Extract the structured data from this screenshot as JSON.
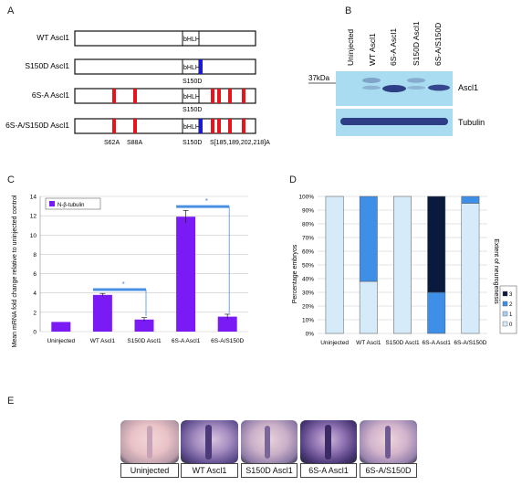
{
  "panels": {
    "a": "A",
    "b": "B",
    "c": "C",
    "d": "D",
    "e": "E"
  },
  "panel_a": {
    "constructs": [
      {
        "label": "WT Ascl1",
        "domain": "bHLH",
        "phospho_bars": [],
        "s150d": false
      },
      {
        "label": "S150D Ascl1",
        "domain": "bHLH",
        "phospho_bars": [],
        "s150d": true,
        "s150d_label": "S150D"
      },
      {
        "label": "6S-A Ascl1",
        "domain": "bHLH",
        "phospho_bars": [
          1,
          2,
          3,
          4,
          5,
          6
        ],
        "s150d": false,
        "s150d_label": "S150D"
      },
      {
        "label": "6S-A/S150D Ascl1",
        "domain": "bHLH",
        "phospho_bars": [
          1,
          2,
          3,
          4,
          5,
          6
        ],
        "s150d": true
      }
    ],
    "site_labels": {
      "s62a": "S62A",
      "s88a": "S88A",
      "s150d": "S150D",
      "cluster": "S[185,189,202,218]A"
    },
    "colors": {
      "phospho": "#e8141c",
      "s150d": "#1a1ad6"
    }
  },
  "panel_b": {
    "columns": [
      "Uninjected",
      "WT Ascl1",
      "6S-A Ascl1",
      "S150D Ascl1",
      "6S-A/S150D"
    ],
    "marker": "37kDa",
    "bands": {
      "top": "Ascl1",
      "bottom": "Tubulin"
    },
    "blot_color": "#a9dcf0"
  },
  "panel_c": {
    "chart_data": {
      "type": "bar",
      "categories": [
        "Uninjected",
        "WT Ascl1",
        "S150D Ascl1",
        "6S-A Ascl1",
        "6S-A/S150D"
      ],
      "series": [
        {
          "name": "N-β-tubulin",
          "values": [
            1.0,
            3.8,
            1.25,
            11.9,
            1.55
          ],
          "errors": [
            0,
            0.15,
            0.2,
            0.65,
            0.25
          ]
        }
      ],
      "ylabel": "Mean mRNA fold change relative to uninjected control",
      "ylim": [
        0,
        14
      ],
      "yticks": [
        0,
        2,
        4,
        6,
        8,
        10,
        12,
        14
      ],
      "grid": true,
      "legend": "top-left",
      "significance": [
        {
          "from": 1,
          "to": 2,
          "label": "*"
        },
        {
          "from": 3,
          "to": 4,
          "label": "*"
        }
      ],
      "bar_color": "#7a1af5"
    }
  },
  "panel_d": {
    "chart_data": {
      "type": "bar",
      "stacked": true,
      "categories": [
        "Uninjected",
        "WT Ascl1",
        "S150D Ascl1",
        "6S-A Ascl1",
        "6S-A/S150D"
      ],
      "series": [
        {
          "name": "0",
          "values": [
            100,
            38,
            100,
            0,
            95
          ],
          "color": "#d6ebfa"
        },
        {
          "name": "1",
          "values": [
            0,
            0,
            0,
            0,
            0
          ],
          "color": "#a8cff0"
        },
        {
          "name": "2",
          "values": [
            0,
            62,
            0,
            30,
            5
          ],
          "color": "#3e8fe8"
        },
        {
          "name": "3",
          "values": [
            0,
            0,
            0,
            70,
            0
          ],
          "color": "#0a1a3e"
        }
      ],
      "ylabel": "Percentage embryos",
      "ylim": [
        0,
        100
      ],
      "yticks": [
        "0%",
        "10%",
        "20%",
        "30%",
        "40%",
        "50%",
        "60%",
        "70%",
        "80%",
        "90%",
        "100%"
      ],
      "legend_title": "Extent of neurogenesis",
      "legend": "right",
      "grid": true
    }
  },
  "panel_e": {
    "labels": [
      "Uninjected",
      "WT Ascl1",
      "S150D Ascl1",
      "6S-A Ascl1",
      "6S-A/S150D"
    ]
  }
}
